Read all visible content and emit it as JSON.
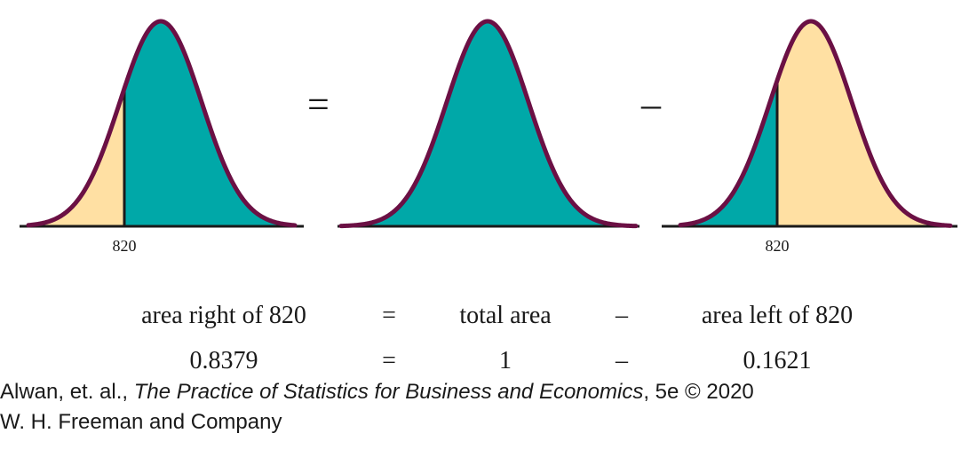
{
  "colors": {
    "curve": "#6b1044",
    "shade_teal": "#00a8a8",
    "shade_cream": "#ffe0a3",
    "axis": "#1a1a1a"
  },
  "panels": [
    {
      "marker_label": "820",
      "shading": "right-of-marker-teal"
    },
    {
      "marker_label": "",
      "shading": "all-teal"
    },
    {
      "marker_label": "820",
      "shading": "left-of-marker-teal"
    }
  ],
  "operators": {
    "equals": "=",
    "minus": "–"
  },
  "equation": {
    "row1": [
      "area right of 820",
      "=",
      "total area",
      "–",
      "area left of 820"
    ],
    "row2": [
      "0.8379",
      "=",
      "1",
      "–",
      "0.1621"
    ]
  },
  "credit": {
    "authors": "Alwan, et. al., ",
    "book_title": "The Practice of Statistics for Business and Economics",
    "edition": ", 5e © 2020",
    "publisher": "W. H. Freeman and Company"
  }
}
